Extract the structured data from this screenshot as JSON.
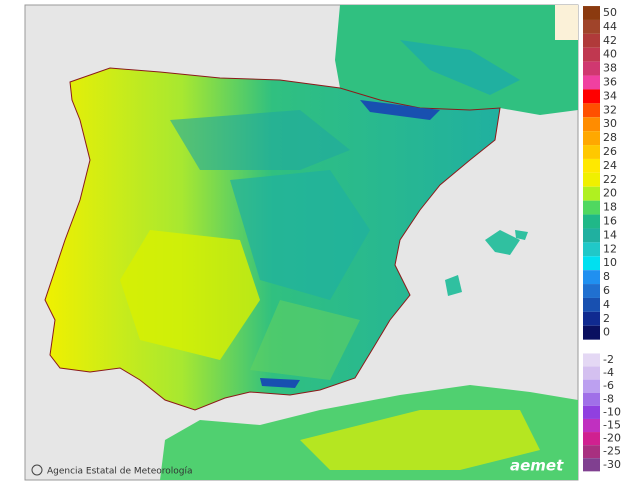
{
  "map": {
    "legend": {
      "positive": [
        {
          "value": 50,
          "color": "#8b3a0f"
        },
        {
          "value": 44,
          "color": "#a0442a"
        },
        {
          "value": 42,
          "color": "#b03a3a"
        },
        {
          "value": 40,
          "color": "#c03850"
        },
        {
          "value": 38,
          "color": "#d03870"
        },
        {
          "value": 36,
          "color": "#f040a0"
        },
        {
          "value": 34,
          "color": "#ff0000"
        },
        {
          "value": 32,
          "color": "#ff5000"
        },
        {
          "value": 30,
          "color": "#ff8c00"
        },
        {
          "value": 28,
          "color": "#ffa800"
        },
        {
          "value": 26,
          "color": "#ffc800"
        },
        {
          "value": 24,
          "color": "#ffe800"
        },
        {
          "value": 22,
          "color": "#f0f000"
        },
        {
          "value": 20,
          "color": "#b0f020"
        },
        {
          "value": 18,
          "color": "#50d860"
        },
        {
          "value": 16,
          "color": "#20b888"
        },
        {
          "value": 14,
          "color": "#20b0a0"
        },
        {
          "value": 12,
          "color": "#20c8c8"
        },
        {
          "value": 10,
          "color": "#00e0f0"
        },
        {
          "value": 8,
          "color": "#2090f0"
        },
        {
          "value": 6,
          "color": "#2070d0"
        },
        {
          "value": 4,
          "color": "#1850b0"
        },
        {
          "value": 2,
          "color": "#102a90"
        },
        {
          "value": 0,
          "color": "#0a1060"
        }
      ],
      "negative": [
        {
          "value": -2,
          "color": "#e4d8f4"
        },
        {
          "value": -4,
          "color": "#d4c0f0"
        },
        {
          "value": -6,
          "color": "#bca0f0"
        },
        {
          "value": -8,
          "color": "#a070e8"
        },
        {
          "value": -10,
          "color": "#9040e0"
        },
        {
          "value": -15,
          "color": "#c030c0"
        },
        {
          "value": -20,
          "color": "#d02090"
        },
        {
          "value": -25,
          "color": "#a83080"
        },
        {
          "value": -30,
          "color": "#804090"
        }
      ]
    },
    "footer": "Agencia Estatal de Meteorología",
    "logo": "aemet"
  }
}
